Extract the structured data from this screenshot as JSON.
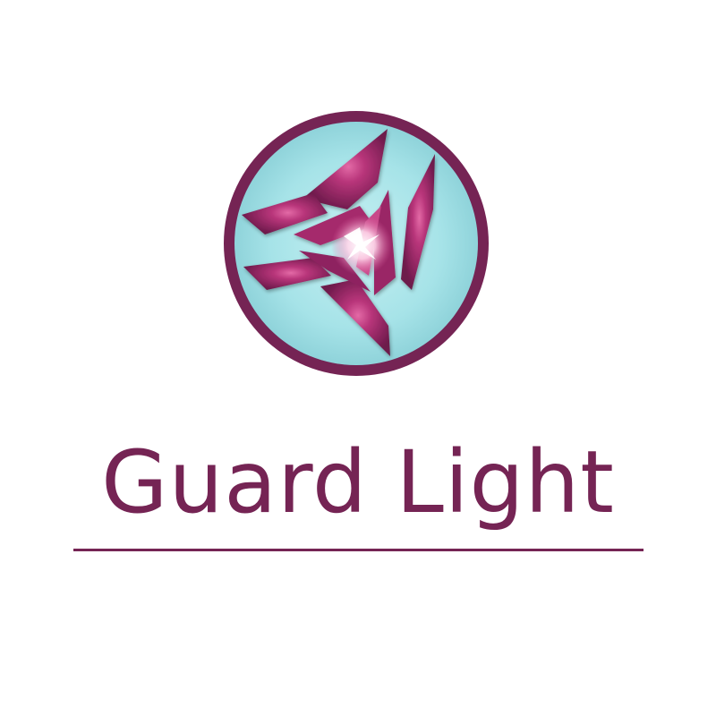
{
  "logo": {
    "brand_name": "Guard Light",
    "icon": "guard-light-emblem-icon",
    "colors": {
      "ring": "#752454",
      "background": "#9fe1e6",
      "blade_dark": "#7a1f55",
      "blade_light": "#c0437f",
      "core_glow": "#ffffff"
    }
  }
}
